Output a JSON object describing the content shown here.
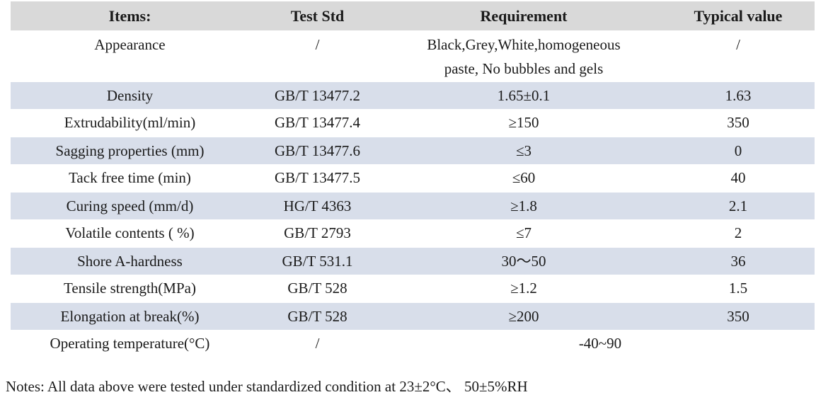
{
  "table": {
    "headers": [
      "Items:",
      "Test Std",
      "Requirement",
      "Typical value"
    ],
    "rows": [
      {
        "item": "Appearance",
        "std": "/",
        "req": "Black,Grey,White,homogeneous\npaste, No bubbles and gels",
        "typ": "/"
      },
      {
        "item": "Density",
        "std": "GB/T 13477.2",
        "req": "1.65±0.1",
        "typ": "1.63"
      },
      {
        "item": "Extrudability(ml/min)",
        "std": "GB/T 13477.4",
        "req": "≥150",
        "typ": "350"
      },
      {
        "item": "Sagging properties (mm)",
        "std": "GB/T 13477.6",
        "req": "≤3",
        "typ": "0"
      },
      {
        "item": "Tack free time (min)",
        "std": "GB/T 13477.5",
        "req": "≤60",
        "typ": "40"
      },
      {
        "item": "Curing speed (mm/d)",
        "std": "HG/T 4363",
        "req": "≥1.8",
        "typ": "2.1"
      },
      {
        "item": "Volatile contents ( %)",
        "std": "GB/T 2793",
        "req": "≤7",
        "typ": "2"
      },
      {
        "item": "Shore A-hardness",
        "std": "GB/T 531.1",
        "req": "30～50",
        "typ": "36"
      },
      {
        "item": "Tensile strength(MPa)",
        "std": "GB/T 528",
        "req": "≥1.2",
        "typ": "1.5"
      },
      {
        "item": "Elongation at break(%)",
        "std": "GB/T 528",
        "req": "≥200",
        "typ": "350"
      },
      {
        "item": "Operating temperature(°C)",
        "std": "/",
        "req": "-40~90",
        "typ": "",
        "span_req": true
      }
    ]
  },
  "notes": "Notes: All data above were tested under standardized condition at 23±2°C、 50±5%RH",
  "colors": {
    "header-bg": "#d9d9d9",
    "row-shade": "#d8deea"
  }
}
